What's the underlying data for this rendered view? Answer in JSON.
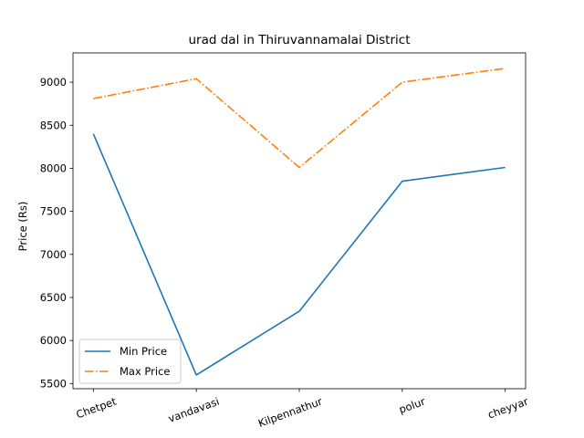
{
  "chart_data": {
    "type": "line",
    "title": "urad dal in Thiruvannamalai District",
    "xlabel": "",
    "ylabel": "Price (Rs)",
    "categories": [
      "Chetpet",
      "vandavasi",
      "Kilpennathur",
      "polur",
      "cheyyar"
    ],
    "series": [
      {
        "name": "Min Price",
        "values": [
          8400,
          5600,
          6340,
          7850,
          8010
        ],
        "color": "#1f77b4",
        "style": "solid"
      },
      {
        "name": "Max Price",
        "values": [
          8810,
          9040,
          8010,
          9000,
          9160
        ],
        "color": "#ff7f0e",
        "style": "dashdot"
      }
    ],
    "ylim": [
      5440,
      9340
    ],
    "yticks": [
      5500,
      6000,
      6500,
      7000,
      7500,
      8000,
      8500,
      9000
    ],
    "legend_position": "lower-left",
    "grid": false
  }
}
